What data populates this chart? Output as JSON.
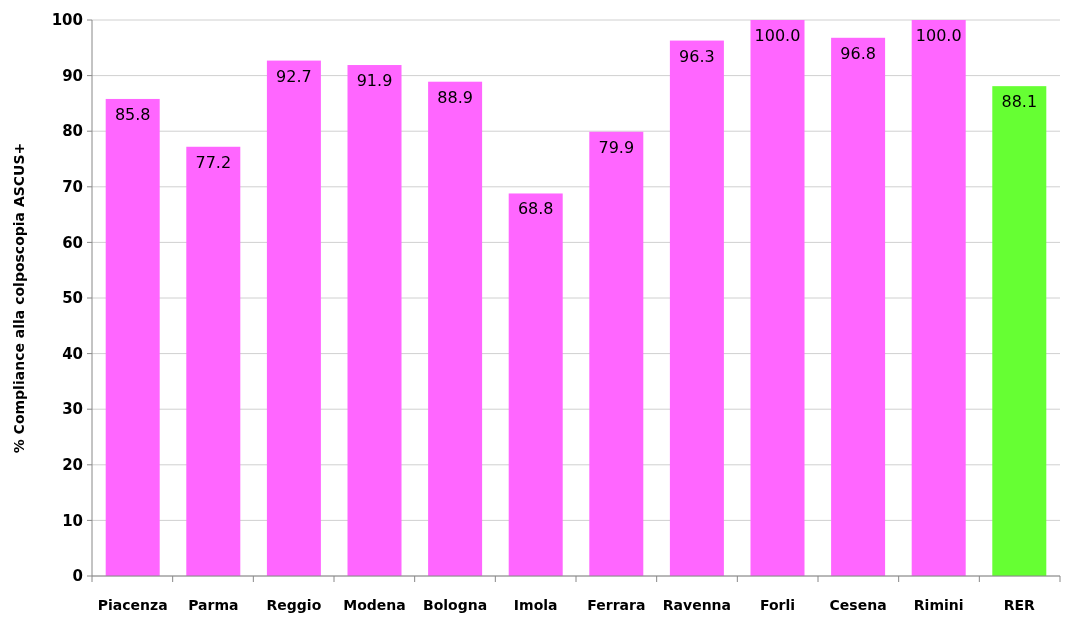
{
  "chart_data": {
    "type": "bar",
    "ylabel": "% Compliance  alla colposcopia  ASCUS+",
    "categories": [
      "Piacenza",
      "Parma",
      "Reggio",
      "Modena",
      "Bologna",
      "Imola",
      "Ferrara",
      "Ravenna",
      "Forli",
      "Cesena",
      "Rimini",
      "RER"
    ],
    "values": [
      85.8,
      77.2,
      92.7,
      91.9,
      88.9,
      68.8,
      79.9,
      96.3,
      100.0,
      96.8,
      100.0,
      88.1
    ],
    "value_labels": [
      "85.8",
      "77.2",
      "92.7",
      "91.9",
      "88.9",
      "68.8",
      "79.9",
      "96.3",
      "100.0",
      "96.8",
      "100.0",
      "88.1"
    ],
    "colors": [
      "#ff66ff",
      "#ff66ff",
      "#ff66ff",
      "#ff66ff",
      "#ff66ff",
      "#ff66ff",
      "#ff66ff",
      "#ff66ff",
      "#ff66ff",
      "#ff66ff",
      "#ff66ff",
      "#66ff33"
    ],
    "ylim": [
      0,
      100
    ],
    "yticks": [
      0,
      10,
      20,
      30,
      40,
      50,
      60,
      70,
      80,
      90,
      100
    ],
    "grid": "y"
  }
}
